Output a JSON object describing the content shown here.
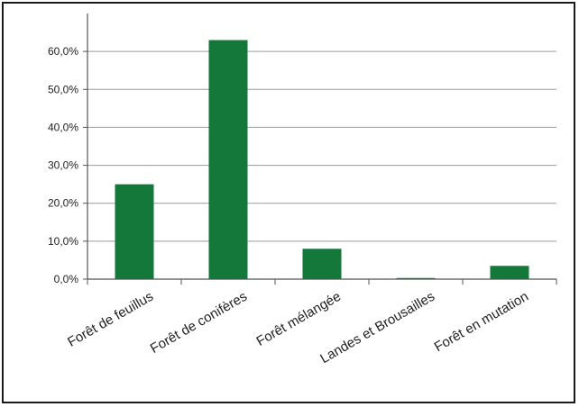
{
  "chart_data": {
    "type": "bar",
    "title": "",
    "xlabel": "",
    "ylabel": "",
    "categories": [
      "Forêt de feuillus",
      "Forêt de conifères",
      "Forêt mélangée",
      "Landes et Brousailles",
      "Forêt en mutation"
    ],
    "values": [
      25.0,
      63.0,
      8.0,
      0.3,
      3.5
    ],
    "ylim": [
      0,
      70
    ],
    "yticks": [
      "0,0%",
      "10,0%",
      "20,0%",
      "30,0%",
      "40,0%",
      "50,0%",
      "60,0%"
    ],
    "grid": true,
    "legend": "none",
    "bar_color": "#13783a"
  }
}
